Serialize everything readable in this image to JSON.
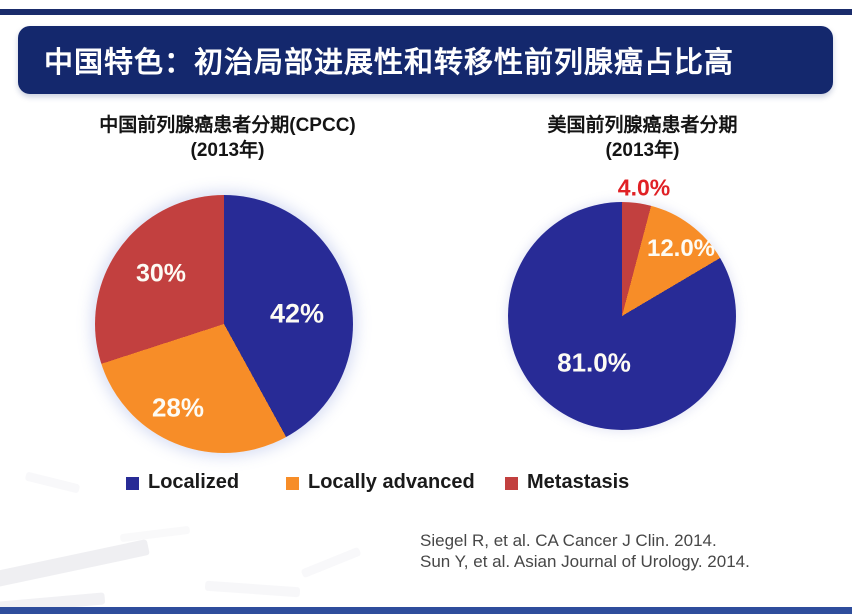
{
  "page": {
    "top_line_color": "#1a2c6b",
    "bottom_bar_color": "#2e4d9c",
    "background": "#ffffff"
  },
  "banner": {
    "title": "中国特色：初治局部进展性和转移性前列腺癌占比高",
    "bg_color": "#14286d",
    "text_color": "#ffffff"
  },
  "legend": {
    "items": [
      {
        "label": "Localized",
        "color": "#282b96"
      },
      {
        "label": "Locally advanced",
        "color": "#f78d28"
      },
      {
        "label": "Metastasis",
        "color": "#c2403f"
      }
    ]
  },
  "citations": {
    "line1": "Siegel R, et al. CA Cancer J Clin. 2014.",
    "line2": "Sun Y, et al. Asian Journal of Urology. 2014."
  },
  "chart_data": [
    {
      "type": "pie",
      "title_line1": "中国前列腺癌患者分期(CPCC)",
      "title_line2": "(2013年)",
      "unit": "%",
      "direction": "clockwise",
      "start_angle": "12 o'clock",
      "legend_position": "bottom",
      "categories": [
        "Localized",
        "Locally advanced",
        "Metastasis"
      ],
      "values": [
        42,
        28,
        30
      ],
      "slices": [
        {
          "label": "Localized",
          "value": 42,
          "display": "42%",
          "color": "#282b96"
        },
        {
          "label": "Locally advanced",
          "value": 28,
          "display": "28%",
          "color": "#f78d28"
        },
        {
          "label": "Metastasis",
          "value": 30,
          "display": "30%",
          "color": "#c2403f"
        }
      ]
    },
    {
      "type": "pie",
      "title_line1": "美国前列腺癌患者分期",
      "title_line2": "(2013年)",
      "unit": "%",
      "direction": "clockwise",
      "start_angle": "12 o'clock",
      "legend_position": "bottom",
      "categories": [
        "Localized",
        "Locally advanced",
        "Metastasis"
      ],
      "values": [
        81.0,
        12.0,
        4.0
      ],
      "slices": [
        {
          "label": "Metastasis",
          "value": 4,
          "display": "4.0%",
          "color": "#c2403f"
        },
        {
          "label": "Locally advanced",
          "value": 12,
          "display": "12.0%",
          "color": "#f78d28"
        },
        {
          "label": "Localized",
          "value": 81,
          "display": "81.0%",
          "color": "#282b96"
        }
      ]
    }
  ]
}
